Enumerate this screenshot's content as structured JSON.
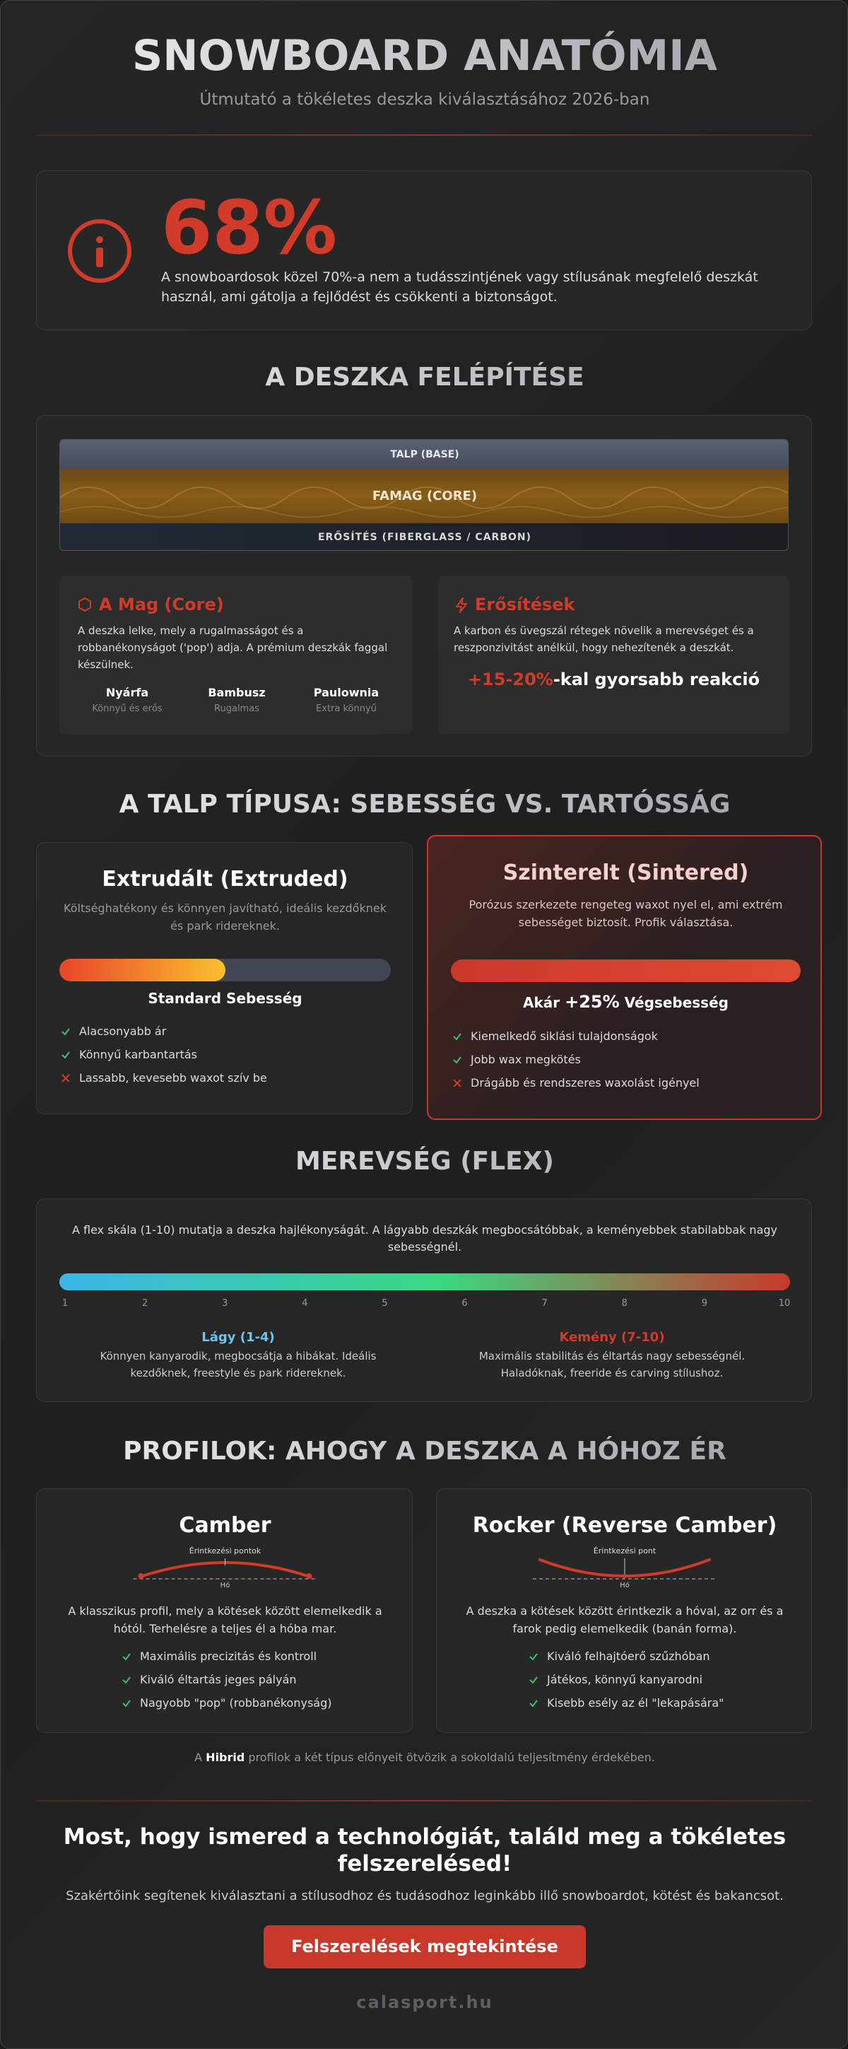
{
  "header": {
    "title": "SNOWBOARD ANATÓMIA",
    "subtitle": "Útmutató a tökéletes deszka kiválasztásához 2026-ban"
  },
  "stat": {
    "value": "68%",
    "text": "A snowboardosok közel 70%-a nem a tudásszintjének vagy stílusának megfelelő deszkát használ, ami gátolja a fejlődést és csökkenti a biztonságot."
  },
  "construction": {
    "title": "A DESZKA FELÉPÍTÉSE",
    "layers": [
      "TALP (BASE)",
      "FAMAG (CORE)",
      "ERŐSÍTÉS (FIBERGLASS / CARBON)"
    ],
    "core": {
      "title": "A Mag (Core)",
      "text": "A deszka lelke, mely a rugalmasságot és a robbanékonyságot ('pop') adja. A prémium deszkák faggal készülnek.",
      "woods": [
        {
          "name": "Nyárfa",
          "note": "Könnyű és erős"
        },
        {
          "name": "Bambusz",
          "note": "Rugalmas"
        },
        {
          "name": "Paulownia",
          "note": "Extra könnyű"
        }
      ]
    },
    "reinforcement": {
      "title": "Erősítések",
      "text": "A karbon és üvegszál rétegek növelik a merevséget és a reszponzivitást anélkül, hogy nehezítenék a deszkát.",
      "highlight": "+15-20%",
      "highlight_rest": "-kal gyorsabb reakció"
    }
  },
  "base": {
    "title": "A TALP TÍPUSA: SEBESSÉG VS. TARTÓSSÁG",
    "cards": [
      {
        "title": "Extrudált (Extruded)",
        "text": "Költséghatékony és könnyen javítható, ideális kezdőknek és park ridereknek.",
        "speed": [
          "Standard Sebesség"
        ],
        "items": [
          {
            "text": "Alacsonyabb ár",
            "good": true
          },
          {
            "text": "Könnyű karbantartás",
            "good": true
          },
          {
            "text": "Lassabb, kevesebb waxot szív be",
            "good": false
          }
        ]
      },
      {
        "title": "Szinterelt (Sintered)",
        "text": "Porózus szerkezete rengeteg waxot nyel el, ami extrém sebességet biztosít. Profik választása.",
        "speed": [
          "Akár",
          "+25%",
          "Végsebesség"
        ],
        "items": [
          {
            "text": "Kiemelkedő siklási tulajdonságok",
            "good": true
          },
          {
            "text": "Jobb wax megkötés",
            "good": true
          },
          {
            "text": "Drágább és rendszeres waxolást igényel",
            "good": false
          }
        ]
      }
    ]
  },
  "flex": {
    "title": "MEREVSÉG (FLEX)",
    "text": "A flex skála (1-10) mutatja a deszka hajlékonyságát. A lágyabb deszkák megbocsátóbbak, a keményebbek stabilabbak nagy sebességnél.",
    "scale": [
      1,
      2,
      3,
      4,
      5,
      6,
      7,
      8,
      9,
      10
    ],
    "soft": {
      "title": "Lágy (1-4)",
      "text": "Könnyen kanyarodik, megbocsátja a hibákat. Ideális kezdőknek, freestyle és park ridereknek."
    },
    "hard": {
      "title": "Kemény (7-10)",
      "text": "Maximális stabilitás és éltartás nagy sebességnél. Haladóknak, freeride és carving stílushoz."
    }
  },
  "profiles": {
    "title": "PROFILOK: AHOGY A DESZKA A HÓHOZ ÉR",
    "cards": [
      {
        "title": "Camber",
        "contact": "Érintkezési pontok",
        "snow": "Hó",
        "text": "A klasszikus profil, mely a kötések között elemelkedik a hótól. Terhelésre a teljes él a hóba mar.",
        "items": [
          "Maximális precizitás és kontroll",
          "Kiváló éltartás jeges pályán",
          "Nagyobb \"pop\" (robbanékonyság)"
        ]
      },
      {
        "title": "Rocker (Reverse Camber)",
        "contact": "Érintkezési pont",
        "snow": "Hó",
        "text": "A deszka a kötések között érintkezik a hóval, az orr és a farok pedig elemelkedik (banán forma).",
        "items": [
          "Kiváló felhajtóerő szűzhóban",
          "Játékos, könnyű kanyarodni",
          "Kisebb esély az él \"lekapására\""
        ]
      }
    ],
    "hybrid": [
      "A",
      "Hibrid",
      "profilok a két típus előnyeit ötvözik a sokoldalú teljesítmény érdekében."
    ]
  },
  "cta": {
    "title": "Most, hogy ismered a technológiát, találd meg a tökéletes felszerelésed!",
    "text": "Szakértőink segítenek kiválasztani a stílusodhoz és tudásodhoz leginkább illő snowboardot, kötést és bakancsot.",
    "button": "Felszerelések megtekintése"
  },
  "footer": {
    "brand": "calasport.hu"
  }
}
